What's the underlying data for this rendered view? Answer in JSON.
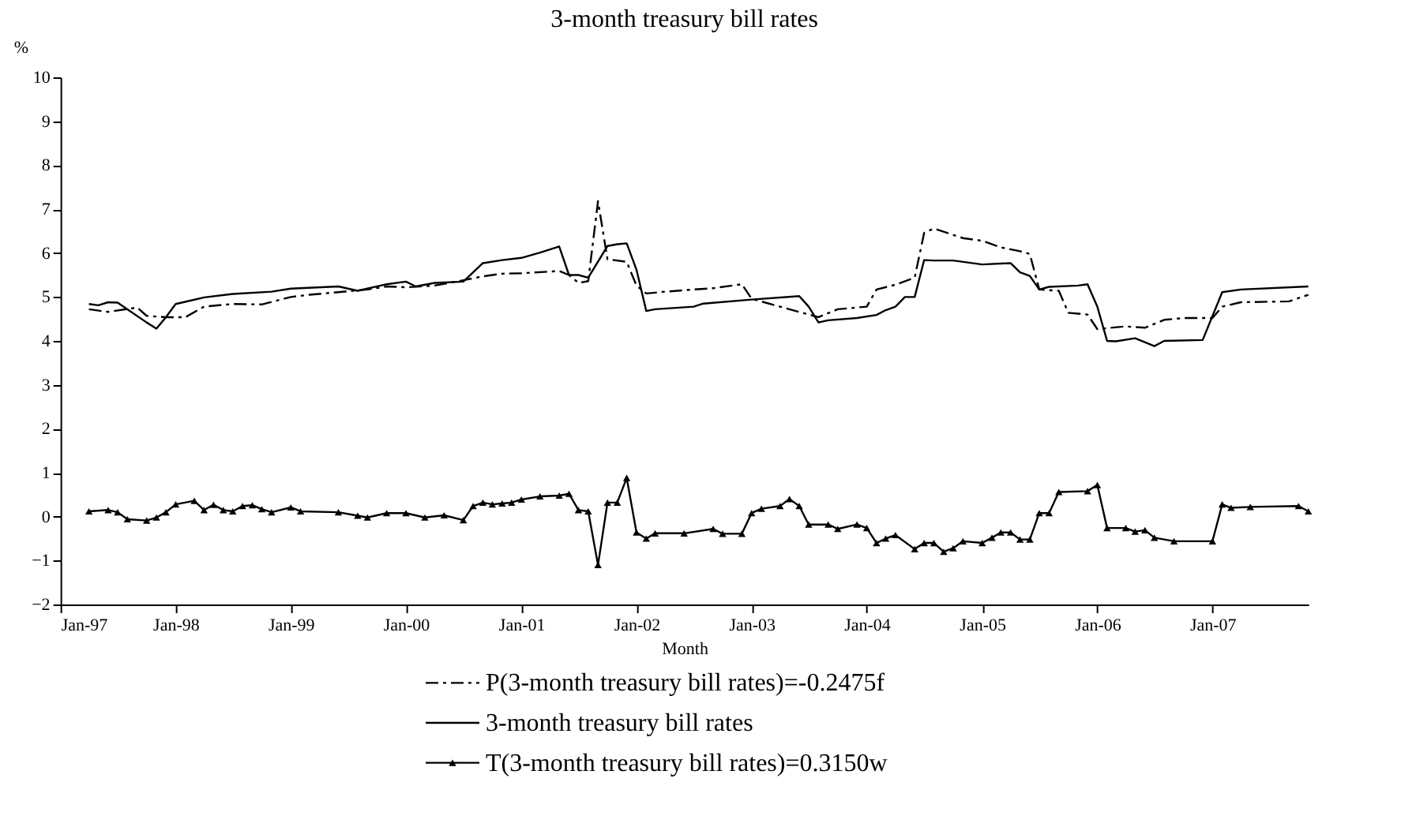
{
  "chart_data": {
    "type": "line",
    "title": "3-month treasury bill rates",
    "xlabel": "Month",
    "ylabel": "%",
    "xlim": [
      "1997-01",
      "2007-11"
    ],
    "ylim": [
      -2,
      10
    ],
    "yticks": [
      -2,
      -1,
      0,
      1,
      2,
      3,
      4,
      5,
      6,
      7,
      8,
      9,
      10
    ],
    "xticks": [
      {
        "value": "1997-01",
        "label": "Jan-97"
      },
      {
        "value": "1998-01",
        "label": "Jan-98"
      },
      {
        "value": "1999-01",
        "label": "Jan-99"
      },
      {
        "value": "2000-01",
        "label": "Jan-00"
      },
      {
        "value": "2001-01",
        "label": "Jan-01"
      },
      {
        "value": "2002-01",
        "label": "Jan-02"
      },
      {
        "value": "2003-01",
        "label": "Jan-03"
      },
      {
        "value": "2004-01",
        "label": "Jan-04"
      },
      {
        "value": "2005-01",
        "label": "Jan-05"
      },
      {
        "value": "2006-01",
        "label": "Jan-06"
      },
      {
        "value": "2007-01",
        "label": "Jan-07"
      }
    ],
    "grid": false,
    "legend": "bottom",
    "series": [
      {
        "name": "P(3-month treasury bill rates)=-0.2475f",
        "color": "#000000",
        "line_style": "dashed",
        "marker": "none",
        "x": [
          "1997-04",
          "1997-06",
          "1997-09",
          "1997-10",
          "1997-12",
          "1998-02",
          "1998-04",
          "1998-07",
          "1998-10",
          "1999-01",
          "1999-03",
          "1999-06",
          "1999-09",
          "1999-11",
          "2000-01",
          "2000-04",
          "2000-07",
          "2000-09",
          "2000-11",
          "2001-01",
          "2001-05",
          "2001-06",
          "2001-07",
          "2001-08",
          "2001-09",
          "2001-10",
          "2001-12",
          "2002-01",
          "2002-02",
          "2002-04",
          "2002-07",
          "2002-09",
          "2002-11",
          "2002-12",
          "2003-01",
          "2003-04",
          "2003-06",
          "2003-08",
          "2003-10",
          "2004-01",
          "2004-02",
          "2004-04",
          "2004-06",
          "2004-07",
          "2004-08",
          "2004-11",
          "2005-01",
          "2005-03",
          "2005-05",
          "2005-06",
          "2005-07",
          "2005-09",
          "2005-10",
          "2005-12",
          "2006-01",
          "2006-04",
          "2006-06",
          "2006-08",
          "2006-10",
          "2007-01",
          "2007-02",
          "2007-04",
          "2007-09",
          "2007-11"
        ],
        "values": [
          4.72,
          4.66,
          4.76,
          4.57,
          4.54,
          4.54,
          4.78,
          4.84,
          4.83,
          5.0,
          5.05,
          5.11,
          5.17,
          5.24,
          5.22,
          5.26,
          5.38,
          5.47,
          5.53,
          5.54,
          5.59,
          5.5,
          5.32,
          5.36,
          7.18,
          5.86,
          5.8,
          5.26,
          5.08,
          5.12,
          5.17,
          5.2,
          5.26,
          5.29,
          4.96,
          4.78,
          4.66,
          4.54,
          4.72,
          4.78,
          5.17,
          5.28,
          5.44,
          6.46,
          6.56,
          6.34,
          6.28,
          6.13,
          6.04,
          5.98,
          5.17,
          5.14,
          4.64,
          4.6,
          4.27,
          4.33,
          4.3,
          4.48,
          4.52,
          4.52,
          4.78,
          4.88,
          4.9,
          5.05
        ]
      },
      {
        "name": "3-month treasury bill rates",
        "color": "#000000",
        "line_style": "solid",
        "marker": "none",
        "x": [
          "1997-04",
          "1997-05",
          "1997-06",
          "1997-07",
          "1997-08",
          "1997-10",
          "1997-11",
          "1997-12",
          "1998-01",
          "1998-04",
          "1998-07",
          "1998-11",
          "1999-01",
          "1999-06",
          "1999-08",
          "1999-11",
          "2000-01",
          "2000-02",
          "2000-04",
          "2000-07",
          "2000-09",
          "2000-11",
          "2001-01",
          "2001-03",
          "2001-05",
          "2001-06",
          "2001-07",
          "2001-08",
          "2001-10",
          "2001-11",
          "2001-12",
          "2002-01",
          "2002-02",
          "2002-03",
          "2002-07",
          "2002-08",
          "2003-01",
          "2003-06",
          "2003-07",
          "2003-08",
          "2003-09",
          "2003-12",
          "2004-02",
          "2004-03",
          "2004-04",
          "2004-05",
          "2004-06",
          "2004-07",
          "2004-08",
          "2004-10",
          "2005-01",
          "2005-04",
          "2005-05",
          "2005-06",
          "2005-07",
          "2005-08",
          "2005-11",
          "2005-12",
          "2006-01",
          "2006-02",
          "2006-03",
          "2006-05",
          "2006-07",
          "2006-08",
          "2006-12",
          "2007-02",
          "2007-04",
          "2007-11"
        ],
        "values": [
          4.84,
          4.81,
          4.88,
          4.87,
          4.72,
          4.42,
          4.28,
          4.54,
          4.84,
          4.99,
          5.07,
          5.12,
          5.19,
          5.24,
          5.14,
          5.29,
          5.35,
          5.24,
          5.32,
          5.35,
          5.77,
          5.84,
          5.89,
          6.01,
          6.15,
          5.5,
          5.5,
          5.44,
          6.16,
          6.2,
          6.22,
          5.62,
          4.68,
          4.72,
          4.78,
          4.85,
          4.94,
          5.02,
          4.78,
          4.42,
          4.47,
          4.52,
          4.59,
          4.7,
          4.78,
          5.0,
          5.0,
          5.84,
          5.83,
          5.83,
          5.74,
          5.77,
          5.56,
          5.48,
          5.17,
          5.23,
          5.26,
          5.29,
          4.78,
          4.0,
          3.99,
          4.06,
          3.88,
          4.0,
          4.02,
          5.11,
          5.17,
          5.24
        ]
      },
      {
        "name": "T(3-month treasury bill rates)=0.3150w",
        "color": "#000000",
        "line_style": "solid",
        "marker": "triangle",
        "x": [
          "1997-04",
          "1997-06",
          "1997-07",
          "1997-08",
          "1997-10",
          "1997-11",
          "1997-12",
          "1998-01",
          "1998-03",
          "1998-04",
          "1998-05",
          "1998-06",
          "1998-07",
          "1998-08",
          "1998-09",
          "1998-10",
          "1998-11",
          "1999-01",
          "1999-02",
          "1999-06",
          "1999-08",
          "1999-09",
          "1999-11",
          "2000-01",
          "2000-03",
          "2000-05",
          "2000-07",
          "2000-08",
          "2000-09",
          "2000-10",
          "2000-11",
          "2000-12",
          "2001-01",
          "2001-03",
          "2001-05",
          "2001-06",
          "2001-07",
          "2001-08",
          "2001-09",
          "2001-10",
          "2001-11",
          "2001-12",
          "2002-01",
          "2002-02",
          "2002-03",
          "2002-06",
          "2002-09",
          "2002-10",
          "2002-12",
          "2003-01",
          "2003-02",
          "2003-04",
          "2003-05",
          "2003-06",
          "2003-07",
          "2003-09",
          "2003-10",
          "2003-12",
          "2004-01",
          "2004-02",
          "2004-03",
          "2004-04",
          "2004-06",
          "2004-07",
          "2004-08",
          "2004-09",
          "2004-10",
          "2004-11",
          "2005-01",
          "2005-02",
          "2005-03",
          "2005-04",
          "2005-05",
          "2005-06",
          "2005-07",
          "2005-08",
          "2005-09",
          "2005-12",
          "2006-01",
          "2006-02",
          "2006-04",
          "2006-05",
          "2006-06",
          "2006-07",
          "2006-09",
          "2007-01",
          "2007-02",
          "2007-03",
          "2007-05",
          "2007-10",
          "2007-11"
        ],
        "values": [
          0.12,
          0.15,
          0.1,
          -0.06,
          -0.09,
          -0.02,
          0.1,
          0.28,
          0.36,
          0.15,
          0.27,
          0.15,
          0.12,
          0.24,
          0.26,
          0.17,
          0.1,
          0.21,
          0.12,
          0.1,
          0.02,
          -0.02,
          0.08,
          0.08,
          -0.02,
          0.03,
          -0.08,
          0.24,
          0.32,
          0.28,
          0.3,
          0.32,
          0.39,
          0.46,
          0.48,
          0.52,
          0.15,
          0.12,
          -1.1,
          0.32,
          0.32,
          0.88,
          -0.36,
          -0.5,
          -0.38,
          -0.38,
          -0.28,
          -0.39,
          -0.39,
          0.08,
          0.18,
          0.24,
          0.4,
          0.24,
          -0.18,
          -0.18,
          -0.28,
          -0.18,
          -0.26,
          -0.6,
          -0.5,
          -0.42,
          -0.74,
          -0.6,
          -0.6,
          -0.8,
          -0.72,
          -0.56,
          -0.6,
          -0.48,
          -0.36,
          -0.36,
          -0.52,
          -0.52,
          0.08,
          0.08,
          0.56,
          0.58,
          0.72,
          -0.26,
          -0.26,
          -0.34,
          -0.31,
          -0.48,
          -0.56,
          -0.56,
          0.28,
          0.2,
          0.22,
          0.24,
          0.12
        ]
      }
    ]
  }
}
